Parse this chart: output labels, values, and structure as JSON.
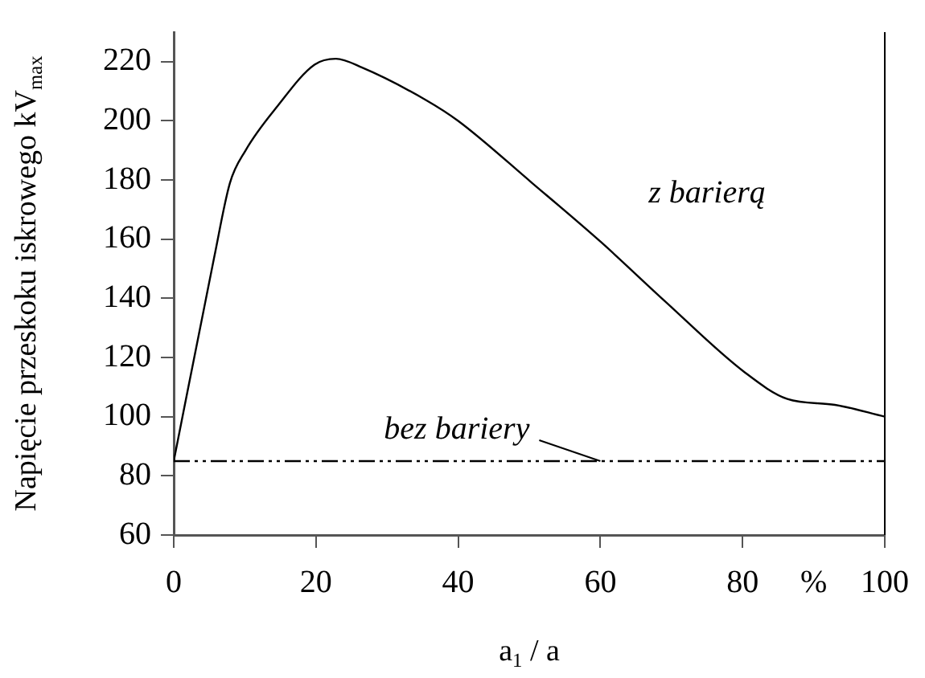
{
  "chart_data": {
    "type": "line",
    "xlabel": "a$_{1}$ / a",
    "ylabel": "Napięcie przeskoku iskrowego kV$_{max}$",
    "xlim": [
      0,
      100
    ],
    "xticks": [
      0,
      20,
      40,
      60,
      80,
      {
        "value": 90,
        "label": "%"
      },
      100
    ],
    "ylim": [
      60,
      230
    ],
    "yticks": [
      60,
      80,
      100,
      120,
      140,
      160,
      180,
      200,
      220
    ],
    "grid": false,
    "legend": false,
    "marker": "none",
    "series": [
      {
        "name": "z barierą",
        "color": "#000000",
        "line_style": "solid",
        "x": [
          0,
          5.7,
          7.9,
          10.1,
          14.6,
          19.8,
          22.8,
          26.5,
          35.5,
          40,
          50.4,
          60.1,
          69.1,
          80.3,
          86.3,
          93,
          100
        ],
        "values": [
          85,
          154,
          179,
          190,
          205,
          219,
          221,
          218,
          207,
          200,
          179,
          159,
          139,
          115,
          106,
          104,
          100
        ]
      },
      {
        "color": "#000000",
        "line_style": "dashed",
        "x": [
          0,
          100
        ],
        "values": [
          85,
          85
        ]
      }
    ],
    "annotations": [
      {
        "text": "bez bariery",
        "x": 60,
        "y": 85
      }
    ]
  }
}
